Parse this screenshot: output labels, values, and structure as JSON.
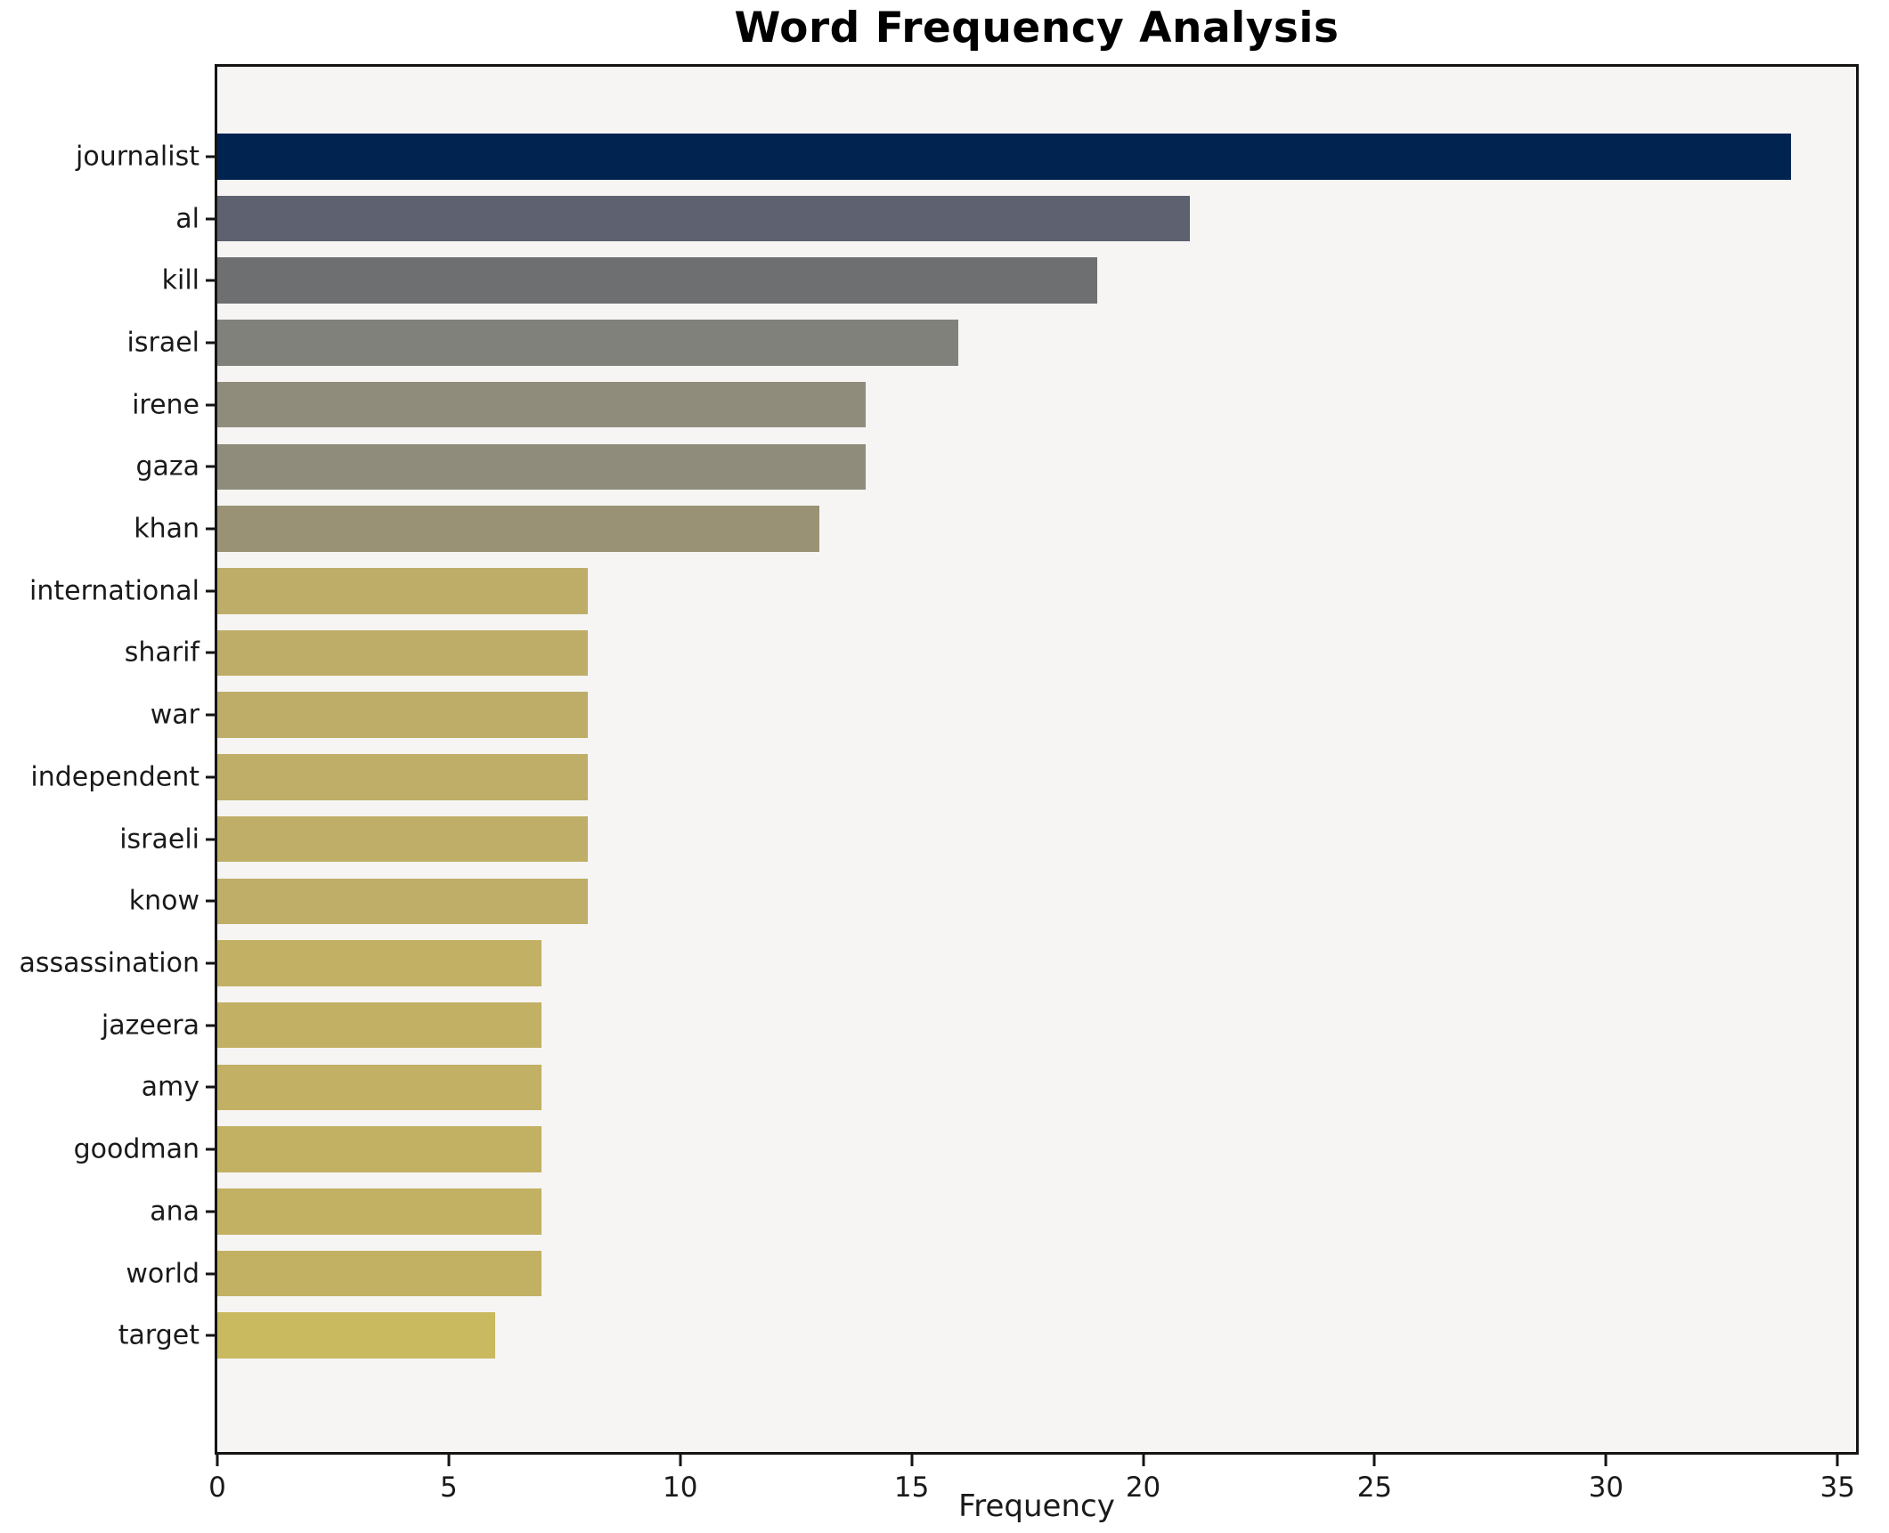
{
  "figure": {
    "title": "Word Frequency Analysis",
    "xlabel": "Frequency"
  },
  "chart_data": {
    "type": "bar",
    "orientation": "horizontal",
    "title": "Word Frequency Analysis",
    "xlabel": "Frequency",
    "ylabel": "",
    "categories": [
      "journalist",
      "al",
      "kill",
      "israel",
      "irene",
      "gaza",
      "khan",
      "international",
      "sharif",
      "war",
      "independent",
      "israeli",
      "know",
      "assassination",
      "jazeera",
      "amy",
      "goodman",
      "ana",
      "world",
      "target"
    ],
    "values": [
      34,
      21,
      19,
      16,
      14,
      14,
      13,
      8,
      8,
      8,
      8,
      8,
      8,
      7,
      7,
      7,
      7,
      7,
      7,
      6
    ],
    "bar_colors": [
      "#012350",
      "#5e6170",
      "#6d6f71",
      "#80817a",
      "#8f8c7b",
      "#8f8c7b",
      "#999274",
      "#bead68",
      "#bead68",
      "#bead68",
      "#bfae67",
      "#bfae67",
      "#bfae67",
      "#c2b064",
      "#c2b064",
      "#c2b064",
      "#c3b163",
      "#c3b163",
      "#c3b163",
      "#c9b95f"
    ],
    "xlim": [
      0,
      35.4
    ],
    "xticks": [
      0,
      5,
      10,
      15,
      20,
      25,
      30,
      35
    ],
    "grid": false,
    "legend": null,
    "plot_background": "#f6f5f4",
    "figure_background": "#ffffff",
    "spine_color": "#141414"
  }
}
